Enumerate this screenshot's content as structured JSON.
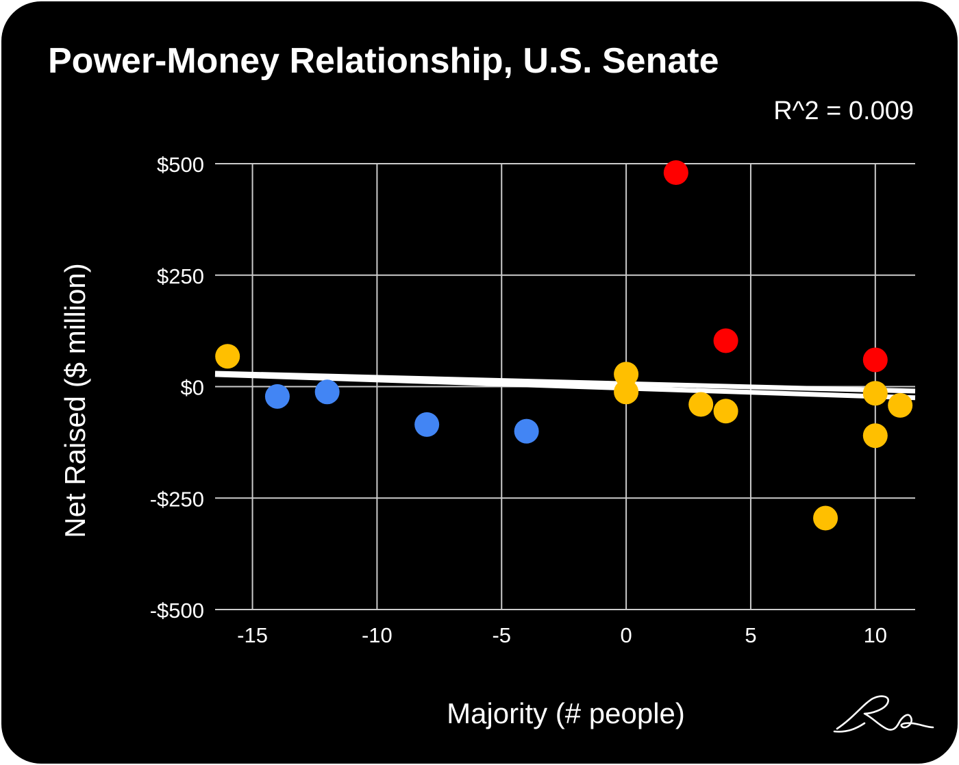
{
  "chart_data": {
    "type": "scatter",
    "title": "Power-Money Relationship, U.S. Senate",
    "annotation": "R^2 = 0.009",
    "xlabel": "Majority (# people)",
    "ylabel": "Net Raised ($ million)",
    "xlim": [
      -16.5,
      11.6
    ],
    "ylim": [
      -500,
      500
    ],
    "xticks": [
      -15,
      -10,
      -5,
      0,
      5,
      10
    ],
    "xtick_labels": [
      "-15",
      "-10",
      "-5",
      "0",
      "5",
      "10"
    ],
    "yticks": [
      500,
      250,
      0,
      -250,
      -500
    ],
    "ytick_labels": [
      "$500",
      "$250",
      "$0",
      "-$250",
      "-$500"
    ],
    "grid": true,
    "legend": "none",
    "point_groups": [
      {
        "color": "#ffbf00",
        "points": [
          {
            "x": -16,
            "y": 68
          },
          {
            "x": 0,
            "y": 28
          },
          {
            "x": 0,
            "y": -12
          },
          {
            "x": 3,
            "y": -40
          },
          {
            "x": 4,
            "y": -55
          },
          {
            "x": 8,
            "y": -295
          },
          {
            "x": 10,
            "y": -15
          },
          {
            "x": 10,
            "y": -110
          },
          {
            "x": 11,
            "y": -42
          }
        ]
      },
      {
        "color": "#4285f4",
        "points": [
          {
            "x": -14,
            "y": -22
          },
          {
            "x": -12,
            "y": -12
          },
          {
            "x": -8,
            "y": -85
          },
          {
            "x": -4,
            "y": -100
          }
        ]
      },
      {
        "color": "#ff0000",
        "points": [
          {
            "x": 2,
            "y": 480
          },
          {
            "x": 4,
            "y": 103
          },
          {
            "x": 10,
            "y": 60
          }
        ]
      }
    ],
    "trendlines": [
      {
        "color": "#ffffff",
        "x": [
          -16.5,
          11.6
        ],
        "y": [
          27,
          -25
        ]
      },
      {
        "color": "#ffffff",
        "x": [
          -16.5,
          11.6
        ],
        "y": [
          30,
          -10
        ]
      }
    ]
  },
  "colors": {
    "background": "#000000",
    "grid": "#cccccc",
    "text": "#ffffff"
  },
  "signature_icon": "handwritten-signature-icon"
}
